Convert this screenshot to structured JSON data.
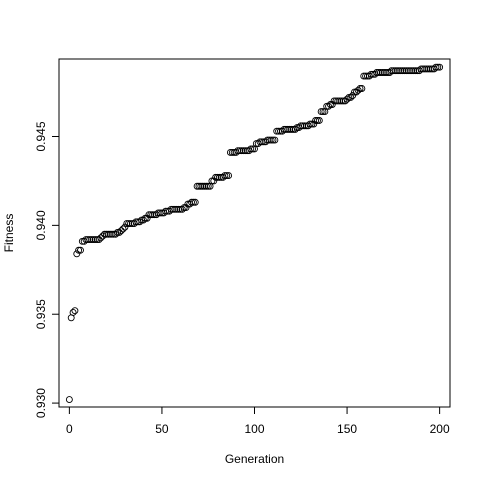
{
  "chart_data": {
    "type": "scatter",
    "title": "",
    "xlabel": "Generation",
    "ylabel": "Fitness",
    "xlim": [
      -5.6,
      205.6
    ],
    "ylim": [
      0.92978,
      0.94936
    ],
    "x_ticks": [
      0,
      50,
      100,
      150,
      200
    ],
    "x_tick_labels": [
      "0",
      "50",
      "100",
      "150",
      "200"
    ],
    "y_ticks": [
      0.93,
      0.935,
      0.94,
      0.945
    ],
    "y_tick_labels": [
      "0.930",
      "0.935",
      "0.940",
      "0.945"
    ],
    "grid": false,
    "marker": "open-circle",
    "marker_color": "#000000",
    "x": [
      0,
      1,
      2,
      3,
      4,
      5,
      6,
      7,
      8,
      9,
      10,
      11,
      12,
      13,
      14,
      15,
      16,
      17,
      18,
      19,
      20,
      21,
      22,
      23,
      24,
      25,
      26,
      27,
      28,
      29,
      30,
      31,
      32,
      33,
      34,
      35,
      36,
      37,
      38,
      39,
      40,
      41,
      42,
      43,
      44,
      45,
      46,
      47,
      48,
      49,
      50,
      51,
      52,
      53,
      54,
      55,
      56,
      57,
      58,
      59,
      60,
      61,
      62,
      63,
      64,
      65,
      66,
      67,
      68,
      69,
      70,
      71,
      72,
      73,
      74,
      75,
      76,
      77,
      78,
      79,
      80,
      81,
      82,
      83,
      84,
      85,
      86,
      87,
      88,
      89,
      90,
      91,
      92,
      93,
      94,
      95,
      96,
      97,
      98,
      99,
      100,
      101,
      102,
      103,
      104,
      105,
      106,
      107,
      108,
      109,
      110,
      111,
      112,
      113,
      114,
      115,
      116,
      117,
      118,
      119,
      120,
      121,
      122,
      123,
      124,
      125,
      126,
      127,
      128,
      129,
      130,
      131,
      132,
      133,
      134,
      135,
      136,
      137,
      138,
      139,
      140,
      141,
      142,
      143,
      144,
      145,
      146,
      147,
      148,
      149,
      150,
      151,
      152,
      153,
      154,
      155,
      156,
      157,
      158,
      159,
      160,
      161,
      162,
      163,
      164,
      165,
      166,
      167,
      168,
      169,
      170,
      171,
      172,
      173,
      174,
      175,
      176,
      177,
      178,
      179,
      180,
      181,
      182,
      183,
      184,
      185,
      186,
      187,
      188,
      189,
      190,
      191,
      192,
      193,
      194,
      195,
      196,
      197,
      198,
      199,
      200
    ],
    "y": [
      0.9302,
      0.9348,
      0.9351,
      0.9352,
      0.9384,
      0.9386,
      0.9386,
      0.9391,
      0.9391,
      0.9392,
      0.9392,
      0.9392,
      0.9392,
      0.9392,
      0.9392,
      0.9392,
      0.9392,
      0.9393,
      0.9394,
      0.9395,
      0.9395,
      0.9395,
      0.9395,
      0.9395,
      0.9395,
      0.9395,
      0.9396,
      0.9396,
      0.9397,
      0.9398,
      0.9399,
      0.9401,
      0.9401,
      0.9401,
      0.9401,
      0.9401,
      0.9402,
      0.9402,
      0.9402,
      0.9403,
      0.9403,
      0.9404,
      0.9404,
      0.9406,
      0.9406,
      0.9406,
      0.9406,
      0.9406,
      0.9407,
      0.9407,
      0.9407,
      0.9407,
      0.9408,
      0.9408,
      0.9408,
      0.9409,
      0.9409,
      0.9409,
      0.9409,
      0.9409,
      0.9409,
      0.9409,
      0.941,
      0.941,
      0.9412,
      0.9412,
      0.9413,
      0.9413,
      0.9413,
      0.9422,
      0.9422,
      0.9422,
      0.9422,
      0.9422,
      0.9422,
      0.9422,
      0.9422,
      0.9425,
      0.9425,
      0.9427,
      0.9427,
      0.9427,
      0.9427,
      0.9427,
      0.9428,
      0.9428,
      0.9428,
      0.9441,
      0.9441,
      0.9441,
      0.9441,
      0.9442,
      0.9442,
      0.9442,
      0.9442,
      0.9442,
      0.9442,
      0.9442,
      0.9443,
      0.9443,
      0.9443,
      0.9446,
      0.9446,
      0.9447,
      0.9447,
      0.9447,
      0.9447,
      0.9448,
      0.9448,
      0.9448,
      0.9448,
      0.9448,
      0.9453,
      0.9453,
      0.9453,
      0.9453,
      0.9454,
      0.9454,
      0.9454,
      0.9454,
      0.9454,
      0.9454,
      0.9454,
      0.9455,
      0.9455,
      0.9456,
      0.9456,
      0.9456,
      0.9456,
      0.9456,
      0.9457,
      0.9457,
      0.9457,
      0.9459,
      0.9459,
      0.9459,
      0.9464,
      0.9464,
      0.9464,
      0.9467,
      0.9467,
      0.9468,
      0.9468,
      0.947,
      0.947,
      0.947,
      0.947,
      0.947,
      0.947,
      0.947,
      0.9471,
      0.9472,
      0.9472,
      0.9473,
      0.9475,
      0.9475,
      0.9476,
      0.9477,
      0.9477,
      0.9484,
      0.9484,
      0.9484,
      0.9484,
      0.9485,
      0.9485,
      0.9485,
      0.9486,
      0.9486,
      0.9486,
      0.9486,
      0.9486,
      0.9486,
      0.9486,
      0.9486,
      0.9487,
      0.9487,
      0.9487,
      0.9487,
      0.9487,
      0.9487,
      0.9487,
      0.9487,
      0.9487,
      0.9487,
      0.9487,
      0.9487,
      0.9487,
      0.9487,
      0.9487,
      0.9487,
      0.9488,
      0.9488,
      0.9488,
      0.9488,
      0.9488,
      0.9488,
      0.9488,
      0.9488,
      0.9489,
      0.9489,
      0.9489
    ]
  }
}
